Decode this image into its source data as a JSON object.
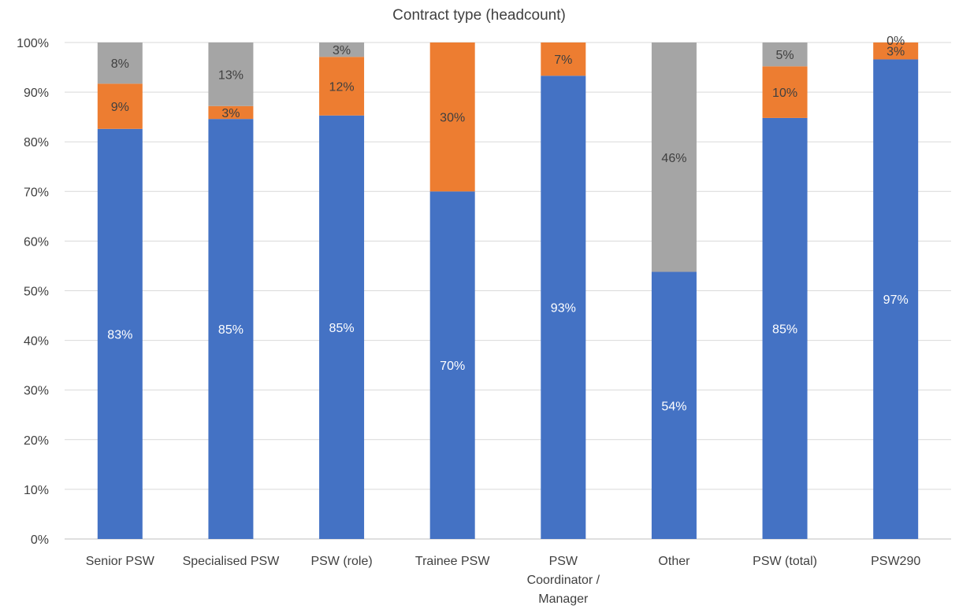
{
  "chart_data": {
    "type": "bar",
    "stacked": true,
    "title": "Contract type (headcount)",
    "xlabel": "",
    "ylabel": "",
    "ylim": [
      0,
      100
    ],
    "y_tick_labels": [
      "0%",
      "10%",
      "20%",
      "30%",
      "40%",
      "50%",
      "60%",
      "70%",
      "80%",
      "90%",
      "100%"
    ],
    "y_ticks": [
      0,
      10,
      20,
      30,
      40,
      50,
      60,
      70,
      80,
      90,
      100
    ],
    "grid": true,
    "legend": "none",
    "categories": [
      "Senior PSW",
      "Specialised PSW",
      "PSW (role)",
      "Trainee PSW",
      "PSW Coordinator / Manager",
      "Other",
      "PSW (total)",
      "PSW290"
    ],
    "category_lines": [
      [
        "Senior PSW"
      ],
      [
        "Specialised PSW"
      ],
      [
        "PSW (role)"
      ],
      [
        "Trainee PSW"
      ],
      [
        "PSW",
        "Coordinator /",
        "Manager"
      ],
      [
        "Other"
      ],
      [
        "PSW (total)"
      ],
      [
        "PSW290"
      ]
    ],
    "series": [
      {
        "color": "#4472C4",
        "label_color": "#ffffff",
        "values": [
          82.6,
          84.6,
          85.3,
          70,
          93.3,
          53.8,
          84.8,
          96.6
        ],
        "labels": [
          "83%",
          "85%",
          "85%",
          "70%",
          "93%",
          "54%",
          "85%",
          "97%"
        ]
      },
      {
        "color": "#ED7D31",
        "label_color": "#404040",
        "values": [
          9.1,
          2.6,
          11.8,
          30,
          6.7,
          0,
          10.4,
          3.4
        ],
        "labels": [
          "9%",
          "3%",
          "12%",
          "30%",
          "7%",
          "",
          "10%",
          "3%"
        ]
      },
      {
        "color": "#A5A5A5",
        "label_color": "#404040",
        "values": [
          8.3,
          12.8,
          2.9,
          0,
          0,
          46.2,
          4.8,
          0
        ],
        "labels": [
          "8%",
          "13%",
          "3%",
          "",
          "",
          "46%",
          "5%",
          "0%"
        ]
      }
    ]
  }
}
